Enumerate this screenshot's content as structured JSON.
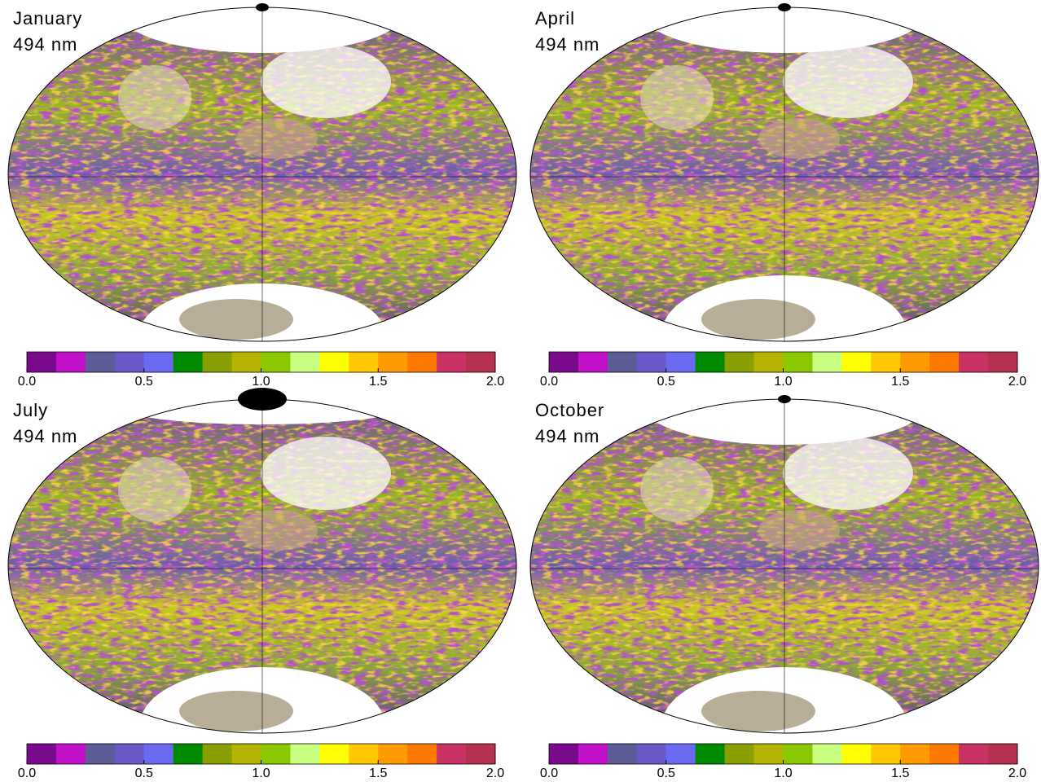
{
  "panels": [
    {
      "title": "January",
      "wavelength": "494 nm"
    },
    {
      "title": "April",
      "wavelength": "494 nm"
    },
    {
      "title": "July",
      "wavelength": "494 nm"
    },
    {
      "title": "October",
      "wavelength": "494 nm"
    }
  ],
  "colorbar": {
    "range": [
      0,
      2
    ],
    "colors": [
      "#7a0a8c",
      "#c010c8",
      "#5c5c96",
      "#6a5ac8",
      "#6a6af0",
      "#008a00",
      "#8aa000",
      "#b4b400",
      "#8cc800",
      "#c8ff80",
      "#ffff00",
      "#ffc800",
      "#ff9a00",
      "#ff7800",
      "#c83264",
      "#b43250"
    ],
    "ticks": [
      {
        "value": 0,
        "label": "0.0"
      },
      {
        "value": 0.5,
        "label": "0.5"
      },
      {
        "value": 1,
        "label": "1.0"
      },
      {
        "value": 1.5,
        "label": "1.5"
      },
      {
        "value": 2,
        "label": "2.0"
      }
    ]
  }
}
